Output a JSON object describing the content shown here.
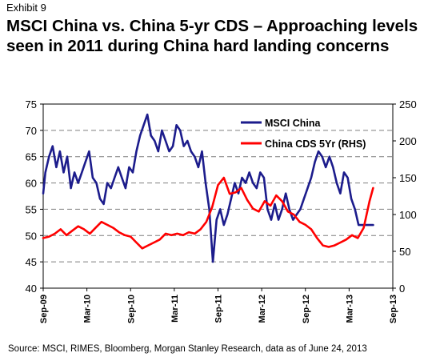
{
  "header": {
    "exhibit": "Exhibit 9",
    "title": "MSCI China vs. China 5-yr CDS – Approaching levels seen in 2011 during China hard landing concerns"
  },
  "footer": {
    "source": "Source: MSCI, RIMES, Bloomberg, Morgan Stanley Research, data as of June 24, 2013"
  },
  "chart_data": {
    "type": "line",
    "title": "MSCI China vs. China 5-yr CDS – Approaching levels seen in 2011 during China hard landing concerns",
    "grid": "horizontal dashed",
    "legend_position": "top-right",
    "x_ticks": [
      "Sep-09",
      "Mar-10",
      "Sep-10",
      "Mar-11",
      "Sep-11",
      "Mar-12",
      "Sep-12",
      "Mar-13",
      "Sep-13"
    ],
    "y_left": {
      "min": 40,
      "max": 75,
      "ticks": [
        40,
        45,
        50,
        55,
        60,
        65,
        70,
        75
      ]
    },
    "y_right": {
      "min": 0,
      "max": 250,
      "ticks": [
        0,
        50,
        100,
        150,
        200,
        250
      ]
    },
    "series": [
      {
        "name": "MSCI China",
        "axis": "left",
        "color": "#1c1c8c",
        "x": [
          0,
          0.3,
          0.8,
          1.3,
          1.8,
          2.3,
          2.8,
          3.3,
          3.8,
          4.3,
          4.8,
          5.3,
          5.8,
          6.3,
          6.8,
          7.3,
          7.8,
          8.3,
          8.8,
          9.3,
          9.8,
          10.3,
          10.8,
          11.3,
          11.8,
          12.3,
          12.8,
          13.3,
          13.8,
          14.3,
          14.8,
          15.3,
          15.8,
          16.3,
          16.8,
          17.3,
          17.8,
          18.3,
          18.8,
          19.3,
          19.8,
          20.3,
          20.8,
          21.3,
          21.8,
          22.3,
          22.8,
          23.3,
          23.8,
          24.3,
          24.8,
          25.3,
          25.8,
          26.3,
          26.8,
          27.3,
          27.8,
          28.3,
          28.8,
          29.3,
          29.8,
          30.3,
          30.8,
          31.3,
          31.8,
          32.3,
          32.8,
          33.3,
          33.8,
          34.3,
          34.8,
          35.3,
          35.8,
          36.3,
          36.8,
          37.3,
          37.8,
          38.3,
          38.8,
          39.3,
          39.8,
          40.3,
          40.8,
          41.3,
          41.8,
          42.3,
          42.8,
          43.3,
          43.8,
          44.3,
          44.8,
          45.3
        ],
        "values": [
          58,
          62,
          65,
          67,
          63,
          66,
          62,
          65,
          59,
          62,
          60,
          62,
          64,
          66,
          61,
          60,
          57,
          56,
          60,
          59,
          61,
          63,
          61,
          59,
          63,
          62,
          66,
          69,
          71,
          73,
          69,
          68,
          66,
          70,
          68,
          66,
          67,
          71,
          70,
          67,
          68,
          66,
          65,
          63,
          66,
          60,
          55,
          45,
          53,
          55,
          52,
          54,
          57,
          60,
          58,
          61,
          60,
          62,
          60,
          59,
          62,
          61,
          55,
          53,
          56,
          53,
          55,
          58,
          55,
          53,
          54,
          55,
          57,
          59,
          61,
          64,
          66,
          65,
          63,
          65,
          63,
          60,
          58,
          62,
          61,
          57,
          55,
          52,
          52,
          52,
          52,
          52
        ]
      },
      {
        "name": "China CDS 5Yr (RHS)",
        "axis": "right",
        "color": "#ff0000",
        "x": [
          0,
          0.8,
          1.6,
          2.4,
          3.2,
          4.0,
          4.8,
          5.6,
          6.4,
          7.2,
          8.0,
          8.8,
          9.6,
          10.4,
          11.2,
          12.0,
          12.8,
          13.6,
          14.4,
          15.2,
          16.0,
          16.8,
          17.6,
          18.4,
          19.2,
          20.0,
          20.8,
          21.6,
          22.4,
          23.2,
          24.0,
          24.8,
          25.6,
          26.4,
          27.2,
          28.0,
          28.8,
          29.6,
          30.4,
          31.2,
          32.0,
          32.8,
          33.6,
          34.4,
          35.2,
          36.0,
          36.8,
          37.6,
          38.4,
          39.2,
          40.0,
          40.8,
          41.6,
          42.4,
          43.2,
          44.0,
          44.8,
          45.3
        ],
        "values": [
          68,
          70,
          74,
          80,
          72,
          78,
          84,
          80,
          74,
          82,
          90,
          86,
          82,
          76,
          72,
          70,
          62,
          54,
          58,
          62,
          66,
          74,
          72,
          74,
          72,
          76,
          74,
          80,
          90,
          110,
          140,
          150,
          128,
          130,
          136,
          120,
          108,
          104,
          118,
          112,
          126,
          118,
          104,
          100,
          90,
          86,
          80,
          68,
          58,
          56,
          58,
          62,
          66,
          72,
          68,
          82,
          118,
          136
        ]
      }
    ]
  }
}
